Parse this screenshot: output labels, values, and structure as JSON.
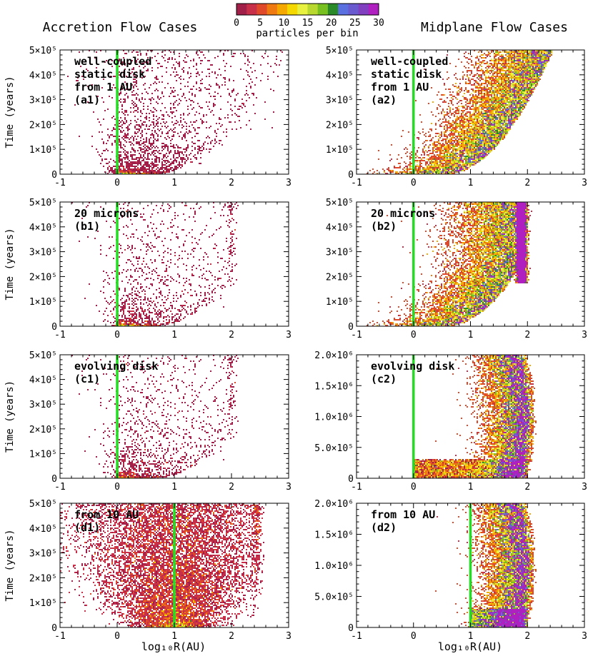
{
  "colorbar": {
    "title": "particles per bin",
    "tick_labels": [
      "0",
      "5",
      "10",
      "15",
      "20",
      "25",
      "30"
    ],
    "colors": [
      "#a0204a",
      "#c8304a",
      "#e04a2a",
      "#f07a12",
      "#f5a800",
      "#f5d800",
      "#e8f040",
      "#b8d830",
      "#78c020",
      "#2a8a2a",
      "#5a70e0",
      "#6a5ad0",
      "#8040c0",
      "#b020c0"
    ]
  },
  "left_column_title": "Accretion Flow Cases",
  "right_column_title": "Midplane Flow Cases",
  "x_axis_label": "log₁₀R(AU)",
  "x_tick_labels": [
    "-1",
    "0",
    "1",
    "2",
    "3"
  ],
  "y_axis_label": "Time (years)",
  "y_ticks_5e5": [
    "0",
    "1×10⁵",
    "2×10⁵",
    "3×10⁵",
    "4×10⁵",
    "5×10⁵"
  ],
  "y_ticks_2e6": [
    "0",
    "5.0×10⁵",
    "1.0×10⁶",
    "1.5×10⁶",
    "2.0×10⁶"
  ],
  "reference_line_color": "#22dd22",
  "chart_data": [
    {
      "type": "heatmap",
      "panel_id": "a1",
      "label_lines": [
        "well-coupled",
        "static disk",
        "from 1 AU",
        "(a1)"
      ],
      "xlim": [
        -1,
        3
      ],
      "ylim": [
        0,
        500000
      ],
      "reference_line_x": 0,
      "density": "sparse",
      "release_log10R": 0
    },
    {
      "type": "heatmap",
      "panel_id": "a2",
      "label_lines": [
        "well-coupled",
        "static disk",
        "from 1 AU",
        "(a2)"
      ],
      "xlim": [
        -1,
        3
      ],
      "ylim": [
        0,
        500000
      ],
      "reference_line_x": 0,
      "density": "dense",
      "release_log10R": 0
    },
    {
      "type": "heatmap",
      "panel_id": "b1",
      "label_lines": [
        "20 microns",
        "(b1)"
      ],
      "xlim": [
        -1,
        3
      ],
      "ylim": [
        0,
        500000
      ],
      "reference_line_x": 0,
      "density": "sparse",
      "release_log10R": 0
    },
    {
      "type": "heatmap",
      "panel_id": "b2",
      "label_lines": [
        "20 microns",
        "(b2)"
      ],
      "xlim": [
        -1,
        3
      ],
      "ylim": [
        0,
        500000
      ],
      "reference_line_x": 0,
      "density": "dense",
      "release_log10R": 0,
      "accumulation_log10R": 1.9
    },
    {
      "type": "heatmap",
      "panel_id": "c1",
      "label_lines": [
        "evolving disk",
        "(c1)"
      ],
      "xlim": [
        -1,
        3
      ],
      "ylim": [
        0,
        500000
      ],
      "reference_line_x": 0,
      "density": "sparse",
      "release_log10R": 0
    },
    {
      "type": "heatmap",
      "panel_id": "c2",
      "label_lines": [
        "evolving disk",
        "(c2)"
      ],
      "xlim": [
        -1,
        3
      ],
      "ylim": [
        0,
        2000000
      ],
      "reference_line_x": 0,
      "density": "dense",
      "release_log10R": 0
    },
    {
      "type": "heatmap",
      "panel_id": "d1",
      "label_lines": [
        "from 10 AU",
        "(d1)"
      ],
      "xlim": [
        -1,
        3
      ],
      "ylim": [
        0,
        500000
      ],
      "reference_line_x": 1,
      "density": "medium",
      "release_log10R": 1
    },
    {
      "type": "heatmap",
      "panel_id": "d2",
      "label_lines": [
        "from 10 AU",
        "(d2)"
      ],
      "xlim": [
        -1,
        3
      ],
      "ylim": [
        0,
        2000000
      ],
      "reference_line_x": 1,
      "density": "dense",
      "release_log10R": 1
    }
  ]
}
